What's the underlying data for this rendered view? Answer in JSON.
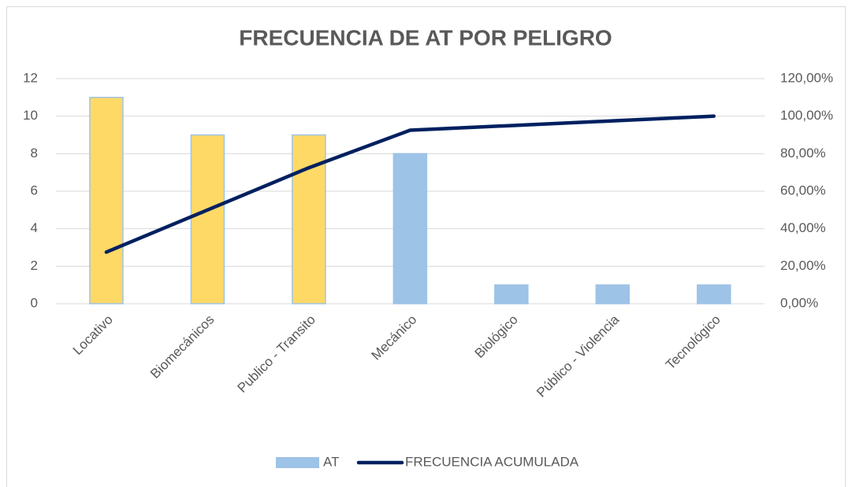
{
  "chart_data": {
    "type": "bar",
    "title": "FRECUENCIA DE AT POR PELIGRO",
    "categories": [
      "Locativo",
      "Biomecánicos",
      "Publico - Transito",
      "Mecánico",
      "Biológico",
      "Público - Violencia",
      "Tecnológico"
    ],
    "series": [
      {
        "name": "AT",
        "type": "bar",
        "color": "#9dc3e6",
        "colors": [
          "#ffd966",
          "#ffd966",
          "#ffd966",
          "#9dc3e6",
          "#9dc3e6",
          "#9dc3e6",
          "#9dc3e6"
        ],
        "values": [
          11,
          9,
          9,
          8,
          1,
          1,
          1
        ]
      },
      {
        "name": "FRECUENCIA ACUMULADA",
        "type": "line",
        "axis": "y2",
        "color": "#002060",
        "values": [
          27.5,
          50,
          72.5,
          92.5,
          95,
          97.5,
          100
        ]
      }
    ],
    "ylim": [
      0,
      12
    ],
    "yticks": [
      0,
      2,
      4,
      6,
      8,
      10,
      12
    ],
    "y2lim": [
      0,
      120
    ],
    "y2ticks": [
      {
        "value": 0,
        "label": "0,00%"
      },
      {
        "value": 20,
        "label": "20,00%"
      },
      {
        "value": 40,
        "label": "40,00%"
      },
      {
        "value": 60,
        "label": "60,00%"
      },
      {
        "value": 80,
        "label": "80,00%"
      },
      {
        "value": 100,
        "label": "100,00%"
      },
      {
        "value": 120,
        "label": "120,00%"
      }
    ],
    "grid": true,
    "legend": "bottom"
  }
}
